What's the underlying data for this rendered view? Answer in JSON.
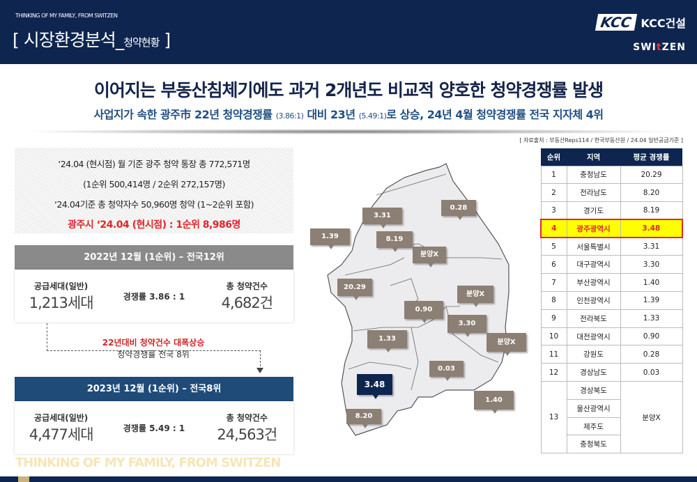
{
  "header": {
    "tagline": "THINKING OF MY FAMILY, FROM SWITZEN",
    "section_title": "[ 시장환경분석_",
    "section_sub": "청약현황",
    "section_close": " ]",
    "logo_mark": "KCC",
    "logo_name": "KCC건설",
    "brand_a": "SWI",
    "brand_t": "t",
    "brand_b": "ZEN"
  },
  "title": "이어지는 부동산침체기에도 과거 2개년도 비교적 양호한 청약경쟁률 발생",
  "subtitle": {
    "p1": "사업지가 속한 광주市 22년 청약경쟁률 ",
    "r1": "(3.86:1)",
    "p2": " 대비 23년 ",
    "r2": "(5.49:1)",
    "p3": "로 상승, 24년 4월 청약경쟁률 전국 지자체 4위"
  },
  "source": "[ 자료출처 : 부동산Reps114 / 한국부동산원 / 24.04 일반공급기준 ]",
  "info": {
    "line1": "‘24.04 (현시점) 월 기준 광주 청약 통장 총 772,571명",
    "line2": "(1순위 500,414명 / 2순위 272,157명)",
    "line3": "‘24.04기준 총 청약자수 50,960명 청약 (1~2순위 포함)",
    "line4": "광주시 ‘24.04 (현시점) : 1순위 8,986명"
  },
  "y2022": {
    "header": "2022년 12월 (1순위) – 전국12위",
    "supply_label": "공급세대(일반)",
    "supply_value": "1,213세대",
    "ratio": "경쟁률 3.86 : 1",
    "total_label": "총 청약건수",
    "total_value": "4,682건"
  },
  "transition": {
    "note1": "22년대비 청약건수 대폭상승",
    "note2": "청약경쟁률 전국 8위"
  },
  "y2023": {
    "header": "2023년 12월 (1순위) – 전국8위",
    "supply_label": "공급세대(일반)",
    "supply_value": "4,477세대",
    "ratio": "경쟁률 5.49 : 1",
    "total_label": "총 청약건수",
    "total_value": "24,563건"
  },
  "footer_tagline": "THINKING OF MY FAMILY, FROM SWITZEN",
  "map_labels": {
    "gangwon": "0.28",
    "seoul": "3.31",
    "incheon": "1.39",
    "gyeonggi": "8.19",
    "chungbuk": "분양X",
    "chungnam": "20.29",
    "gyeongbuk": "분양X",
    "daejeon": "0.90",
    "daegu": "3.30",
    "jeonbuk": "1.33",
    "ulsan": "분양X",
    "gyeongnam": "0.03",
    "gwangju": "3.48",
    "busan": "1.40",
    "jeonnam": "8.20"
  },
  "table": {
    "headers": [
      "순위",
      "지역",
      "평균 경쟁률"
    ],
    "rows": [
      [
        "1",
        "충청남도",
        "20.29"
      ],
      [
        "2",
        "전라남도",
        "8.20"
      ],
      [
        "3",
        "경기도",
        "8.19"
      ],
      [
        "4",
        "광주광역시",
        "3.48"
      ],
      [
        "5",
        "서울특별시",
        "3.31"
      ],
      [
        "6",
        "대구광역시",
        "3.30"
      ],
      [
        "7",
        "부산광역시",
        "1.40"
      ],
      [
        "8",
        "인천광역시",
        "1.39"
      ],
      [
        "9",
        "전라북도",
        "1.33"
      ],
      [
        "10",
        "대전광역시",
        "0.90"
      ],
      [
        "11",
        "강원도",
        "0.28"
      ],
      [
        "12",
        "경상남도",
        "0.03"
      ]
    ],
    "group": {
      "rank": "13",
      "regions": [
        "경상북도",
        "울산광역시",
        "제주도",
        "충청북도"
      ],
      "value": "분양X"
    }
  },
  "colors": {
    "navy": "#0e2550",
    "highlight": "#ffff00",
    "red": "#e0262a",
    "pin": "#8c7f74"
  }
}
